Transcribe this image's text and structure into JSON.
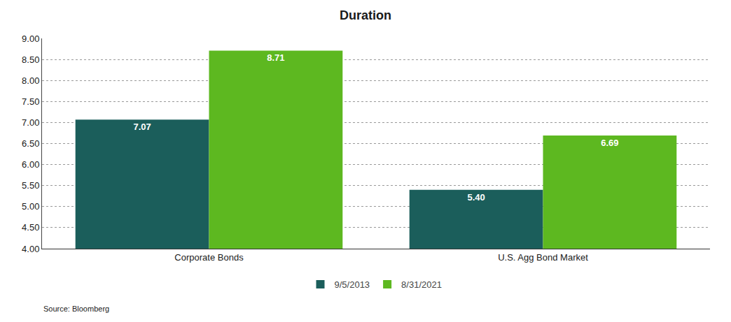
{
  "chart_data": {
    "type": "bar",
    "title": "Duration",
    "categories": [
      "Corporate Bonds",
      "U.S. Agg Bond Market"
    ],
    "series": [
      {
        "name": "9/5/2013",
        "color": "#1b5e5b",
        "values": [
          7.07,
          5.4
        ],
        "value_labels": [
          "7.07",
          "5.40"
        ]
      },
      {
        "name": "8/31/2021",
        "color": "#5db820",
        "values": [
          8.71,
          6.69
        ],
        "value_labels": [
          "8.71",
          "6.69"
        ]
      }
    ],
    "ylim": [
      4.0,
      9.0
    ],
    "yticks": [
      {
        "value": 4.0,
        "label": "4.00"
      },
      {
        "value": 4.5,
        "label": "4.50"
      },
      {
        "value": 5.0,
        "label": "5.00"
      },
      {
        "value": 5.5,
        "label": "5.50"
      },
      {
        "value": 6.0,
        "label": "6.00"
      },
      {
        "value": 6.5,
        "label": "6.50"
      },
      {
        "value": 7.0,
        "label": "7.00"
      },
      {
        "value": 7.5,
        "label": "7.50"
      },
      {
        "value": 8.0,
        "label": "8.00"
      },
      {
        "value": 8.5,
        "label": "8.50"
      },
      {
        "value": 9.0,
        "label": "9.00"
      }
    ],
    "annotations": [
      "Source: Bloomberg"
    ],
    "grid": true,
    "legend": "bottom",
    "data_labels": true
  }
}
